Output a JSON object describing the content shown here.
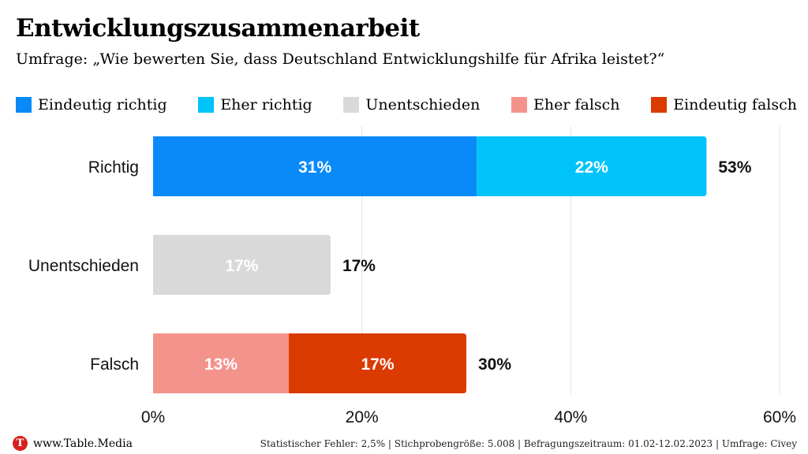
{
  "chart_data": {
    "type": "bar",
    "orientation": "horizontal",
    "stacked": true,
    "title": "Entwicklungszusammenarbeit",
    "subtitle": "Umfrage: „Wie bewerten Sie, dass Deutschland Entwicklungshilfe für Afrika leistet?“",
    "categories": [
      "Richtig",
      "Unentschieden",
      "Falsch"
    ],
    "series": [
      {
        "name": "Eindeutig richtig",
        "color": "#0a8af9",
        "values": [
          31,
          null,
          null
        ],
        "labels": [
          "31%",
          "",
          ""
        ]
      },
      {
        "name": "Eher richtig",
        "color": "#00c3fa",
        "values": [
          22,
          null,
          null
        ],
        "labels": [
          "22%",
          "",
          ""
        ]
      },
      {
        "name": "Unentschieden",
        "color": "#d9d9d9",
        "values": [
          null,
          17,
          null
        ],
        "labels": [
          "",
          "17%",
          ""
        ]
      },
      {
        "name": "Eher falsch",
        "color": "#f4938c",
        "values": [
          null,
          null,
          13
        ],
        "labels": [
          "",
          "",
          "13%"
        ]
      },
      {
        "name": "Eindeutig falsch",
        "color": "#db3a00",
        "values": [
          null,
          null,
          17
        ],
        "labels": [
          "",
          "",
          "17%"
        ]
      }
    ],
    "totals": [
      53,
      17,
      30
    ],
    "total_labels": [
      "53%",
      "17%",
      "30%"
    ],
    "xlim": [
      0,
      60
    ],
    "x_ticks": [
      0,
      20,
      40,
      60
    ],
    "x_tick_labels": [
      "0%",
      "20%",
      "40%",
      "60%"
    ],
    "grid": true,
    "legend_position": "top"
  },
  "footer": {
    "logo_letter": "T",
    "site": "www.Table.Media",
    "note": "Statistischer Fehler: 2,5% | Stichprobengröße: 5.008 | Befragungszeitraum: 01.02-12.02.2023 | Umfrage: Civey"
  }
}
